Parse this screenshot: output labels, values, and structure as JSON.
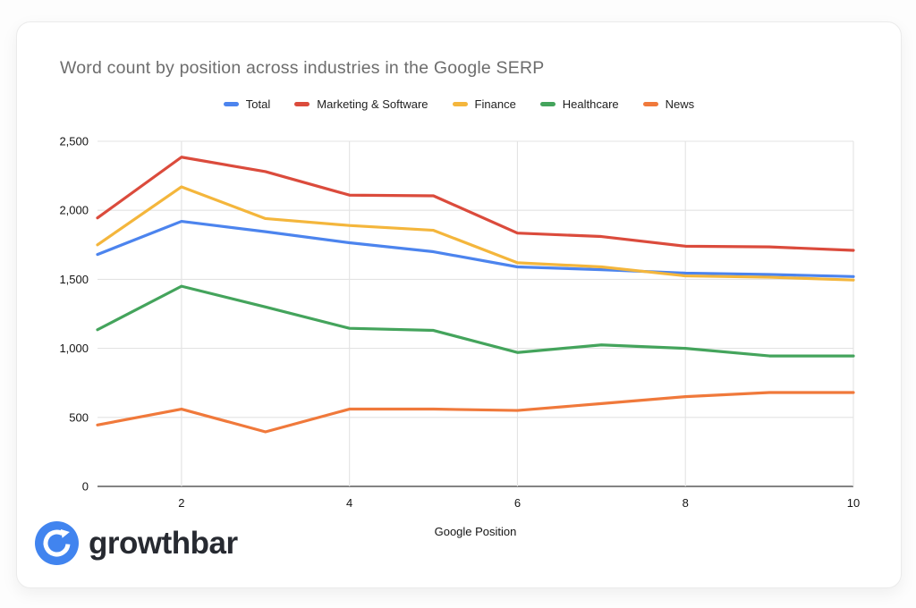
{
  "chart_data": {
    "type": "line",
    "title": "Word count by position across industries in the Google SERP",
    "xlabel": "Google Position",
    "ylabel": "",
    "x": [
      1,
      2,
      3,
      4,
      5,
      6,
      7,
      8,
      9,
      10
    ],
    "xlim": [
      1,
      10
    ],
    "ylim": [
      0,
      2500
    ],
    "grid": true,
    "legend_position": "top",
    "x_ticks": [
      2,
      4,
      6,
      8,
      10
    ],
    "x_tick_labels": [
      "2",
      "4",
      "6",
      "8",
      "10"
    ],
    "y_ticks": [
      0,
      500,
      1000,
      1500,
      2000,
      2500
    ],
    "y_tick_labels": [
      "0",
      "500",
      "1,000",
      "1,500",
      "2,000",
      "2,500"
    ],
    "series": [
      {
        "name": "Total",
        "color": "#4C84EE",
        "values": [
          1680,
          1920,
          1845,
          1765,
          1700,
          1590,
          1570,
          1545,
          1535,
          1520
        ]
      },
      {
        "name": "Marketing & Software",
        "color": "#DB4B3C",
        "values": [
          1945,
          2385,
          2280,
          2110,
          2105,
          1835,
          1810,
          1740,
          1735,
          1710
        ]
      },
      {
        "name": "Finance",
        "color": "#F4B63C",
        "values": [
          1750,
          2170,
          1940,
          1890,
          1855,
          1620,
          1590,
          1525,
          1515,
          1495
        ]
      },
      {
        "name": "Healthcare",
        "color": "#44A45C",
        "values": [
          1135,
          1450,
          1300,
          1145,
          1130,
          970,
          1025,
          1000,
          945,
          945
        ]
      },
      {
        "name": "News",
        "color": "#F0793B",
        "values": [
          445,
          560,
          395,
          560,
          560,
          550,
          600,
          650,
          680,
          680
        ]
      }
    ],
    "grid_color": "#e3e3e3",
    "baseline_color": "#5a5a5a"
  },
  "footer": {
    "logo_text": "growthbar",
    "logo_color": "#4184EF"
  }
}
